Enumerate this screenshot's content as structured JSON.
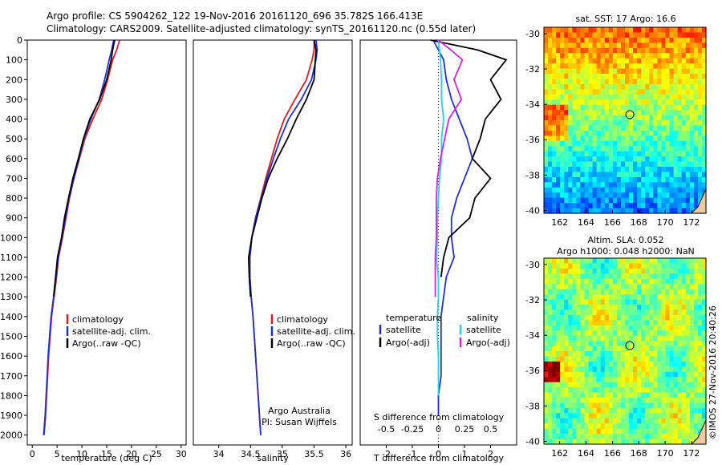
{
  "header": {
    "line1": "Argo profile: CS 5904262_122 19-Nov-2016 20161120_696 35.782S 166.413E",
    "line2": "Climatology: CARS2009. Satellite-adjusted climatology: synTS_20161120.nc (0.55d later)"
  },
  "colors": {
    "climatology": "#e41a1c",
    "satellite": "#1f2fd8",
    "argo": "#000000",
    "salinity_sat": "#22d6e6",
    "salinity_argo": "#e01ee0"
  },
  "chart_data": [
    {
      "type": "line",
      "xlabel": "temperature (deg C)",
      "ylim": [
        2050,
        0
      ],
      "xlim": [
        -1,
        31
      ],
      "xticks": [
        "0",
        "5",
        "10",
        "15",
        "20",
        "25",
        "30"
      ],
      "yticks": [
        "0",
        "100",
        "200",
        "300",
        "400",
        "500",
        "600",
        "700",
        "800",
        "900",
        "1000",
        "1100",
        "1200",
        "1300",
        "1400",
        "1500",
        "1600",
        "1700",
        "1800",
        "1900",
        "2000"
      ],
      "legend": [
        "climatology",
        "satellite-adj. clim.",
        "Argo(..raw -QC)"
      ],
      "series": [
        {
          "name": "climatology",
          "x": [
            17.6,
            17.0,
            16.2,
            15.2,
            14.0,
            12.2,
            10.6,
            9.5,
            8.4,
            7.5,
            6.8,
            6.1,
            5.3,
            4.9,
            4.4,
            3.9,
            3.6,
            3.3,
            3.1,
            2.9,
            2.7,
            2.4
          ],
          "y": [
            0,
            50,
            100,
            200,
            300,
            400,
            500,
            600,
            700,
            800,
            900,
            1000,
            1100,
            1200,
            1300,
            1400,
            1500,
            1600,
            1700,
            1800,
            1900,
            2000
          ]
        },
        {
          "name": "satellite-adj. clim.",
          "x": [
            16.4,
            16.0,
            15.5,
            14.6,
            13.5,
            11.8,
            10.4,
            9.4,
            8.4,
            7.4,
            6.7,
            6.0,
            5.2,
            4.8,
            4.3,
            3.8,
            3.5,
            3.2,
            3.0,
            2.8,
            2.6,
            2.3
          ],
          "y": [
            0,
            50,
            100,
            200,
            300,
            400,
            500,
            600,
            700,
            800,
            900,
            1000,
            1100,
            1200,
            1300,
            1400,
            1500,
            1600,
            1700,
            1800,
            1900,
            2000
          ]
        },
        {
          "name": "Argo(..raw -QC)",
          "x": [
            16.6,
            16.2,
            15.9,
            15.0,
            13.6,
            11.6,
            10.3,
            9.3,
            8.2,
            7.3,
            6.5,
            5.9,
            5.1,
            4.7,
            4.3
          ],
          "y": [
            0,
            50,
            100,
            200,
            300,
            400,
            500,
            600,
            700,
            800,
            900,
            1000,
            1100,
            1200,
            1300
          ]
        }
      ]
    },
    {
      "type": "line",
      "xlabel": "salinity",
      "ylim": [
        2050,
        0
      ],
      "xlim": [
        33.6,
        36.1
      ],
      "xticks": [
        "34",
        "34.5",
        "35",
        "35.5",
        "36"
      ],
      "legend": [
        "climatology",
        "satellite-adj. clim.",
        "Argo(..raw -QC)"
      ],
      "series": [
        {
          "name": "climatology",
          "x": [
            35.5,
            35.5,
            35.47,
            35.38,
            35.2,
            35.03,
            34.92,
            34.83,
            34.74,
            34.66,
            34.58,
            34.52,
            34.49,
            34.49,
            34.51,
            34.54,
            34.56,
            34.58,
            34.6,
            34.62,
            34.64,
            34.66
          ],
          "y": [
            0,
            50,
            100,
            200,
            300,
            400,
            500,
            600,
            700,
            800,
            900,
            1000,
            1100,
            1200,
            1300,
            1400,
            1500,
            1600,
            1700,
            1800,
            1900,
            2000
          ]
        },
        {
          "name": "satellite-adj. clim.",
          "x": [
            35.53,
            35.55,
            35.53,
            35.46,
            35.3,
            35.1,
            34.97,
            34.86,
            34.76,
            34.67,
            34.58,
            34.52,
            34.49,
            34.49,
            34.51,
            34.54,
            34.56,
            34.58,
            34.6,
            34.62,
            34.64,
            34.66
          ],
          "y": [
            0,
            50,
            100,
            200,
            300,
            400,
            500,
            600,
            700,
            800,
            900,
            1000,
            1100,
            1200,
            1300,
            1400,
            1500,
            1600,
            1700,
            1800,
            1900,
            2000
          ]
        },
        {
          "name": "Argo(..raw -QC)",
          "x": [
            35.5,
            35.53,
            35.52,
            35.5,
            35.38,
            35.22,
            35.08,
            34.92,
            34.78,
            34.68,
            34.6,
            34.52,
            34.47,
            34.48,
            34.5
          ],
          "y": [
            0,
            50,
            100,
            200,
            300,
            400,
            500,
            600,
            700,
            800,
            900,
            1000,
            1100,
            1200,
            1300
          ]
        }
      ],
      "annotation": [
        "Argo Australia",
        "PI: Susan Wijffels"
      ]
    },
    {
      "type": "line",
      "xlabel": "T difference from climatology",
      "x2label": "S difference from climatology",
      "ylim": [
        2050,
        0
      ],
      "xlim": [
        -3,
        3
      ],
      "xticks": [
        "-2",
        "-1",
        "0",
        "1",
        "2"
      ],
      "x2ticks": [
        "-0.5",
        "-0.25",
        "0",
        "0.25",
        "0.5"
      ],
      "legend": {
        "temperature": [
          "satellite",
          "Argo(-adj)"
        ],
        "salinity": [
          "satellite",
          "Argo(-adj)"
        ]
      },
      "series": [
        {
          "name": "satellite",
          "x": [
            -0.2,
            0.2,
            0.3,
            0.5,
            0.8,
            1.1,
            1.3,
            1.0,
            0.7,
            0.5,
            0.5,
            0.6,
            0.3,
            0.2,
            0.1,
            0.1,
            0.1,
            0.1,
            0.0,
            0.0
          ],
          "y": [
            0,
            100,
            200,
            300,
            400,
            500,
            600,
            700,
            800,
            900,
            1000,
            1100,
            1200,
            1300,
            1400,
            1500,
            1600,
            1700,
            1800,
            1900
          ]
        },
        {
          "name": "Argo(-adj)",
          "x": [
            -0.3,
            1.5,
            2.6,
            2.0,
            2.4,
            1.8,
            1.6,
            1.3,
            2.0,
            1.4,
            1.2,
            0.4,
            0.2,
            0.1
          ],
          "y": [
            0,
            50,
            100,
            200,
            300,
            400,
            500,
            600,
            700,
            800,
            900,
            1000,
            1100,
            1200
          ]
        },
        {
          "name": "S satellite",
          "x": [
            0.0,
            0.02,
            0.03,
            0.03,
            0.05,
            0.03,
            0.03,
            0.01,
            0.0,
            -0.01,
            -0.01,
            -0.02,
            0.0,
            0.0,
            -0.01,
            -0.01,
            0.0,
            0.0,
            0.0
          ],
          "y": [
            0,
            100,
            200,
            300,
            400,
            500,
            600,
            700,
            800,
            900,
            1000,
            1100,
            1200,
            1300,
            1400,
            1500,
            1600,
            1700,
            1800
          ]
        },
        {
          "name": "S Argo(-adj)",
          "x": [
            0.0,
            0.12,
            0.23,
            0.15,
            0.22,
            0.1,
            0.06,
            0.02,
            -0.01,
            -0.02,
            -0.02,
            -0.02,
            -0.03,
            -0.03,
            -0.03
          ],
          "y": [
            0,
            50,
            100,
            200,
            300,
            400,
            500,
            600,
            700,
            800,
            900,
            1000,
            1100,
            1200,
            1300
          ]
        }
      ]
    },
    {
      "type": "heatmap",
      "title": "sat. SST: 17 Argo: 16.6",
      "xticks": [
        "162",
        "164",
        "166",
        "168",
        "170",
        "172"
      ],
      "yticks": [
        "-30",
        "-32",
        "-34",
        "-36",
        "-38",
        "-40"
      ]
    },
    {
      "type": "heatmap",
      "title_line1": "Altim. SLA: 0.052",
      "title_line2": "Argo h1000: 0.048 h2000: NaN",
      "xticks": [
        "162",
        "164",
        "166",
        "168",
        "170",
        "172"
      ],
      "yticks": [
        "-30",
        "-32",
        "-34",
        "-36",
        "-38",
        "-40"
      ]
    }
  ],
  "credit": "©IMOS 27-Nov-2016 20:40:26"
}
